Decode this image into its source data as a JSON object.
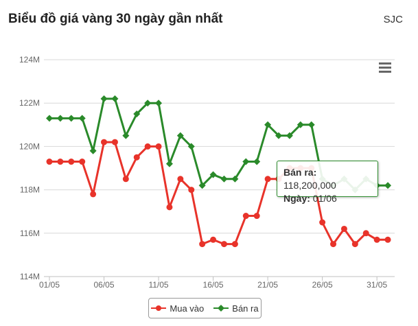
{
  "header": {
    "title": "Biểu đồ giá vàng 30 ngày gần nhất",
    "source": "SJC"
  },
  "colors": {
    "buy": "#e8332a",
    "sell": "#2a8a2a",
    "grid": "#d8d8d8"
  },
  "icons": {
    "menu": "hamburger-menu-icon"
  },
  "legend": {
    "buy_label": "Mua vào",
    "sell_label": "Bán ra"
  },
  "tooltip": {
    "label1": "Bán ra:",
    "value1": "118,200,000",
    "label2": "Ngày:",
    "value2": "01/06"
  },
  "chart_data": {
    "type": "line",
    "x": [
      "01/05",
      "02/05",
      "03/05",
      "04/05",
      "05/05",
      "06/05",
      "07/05",
      "08/05",
      "09/05",
      "10/05",
      "11/05",
      "12/05",
      "13/05",
      "14/05",
      "15/05",
      "16/05",
      "17/05",
      "18/05",
      "19/05",
      "20/05",
      "21/05",
      "22/05",
      "23/05",
      "24/05",
      "25/05",
      "26/05",
      "27/05",
      "28/05",
      "29/05",
      "30/05",
      "31/05",
      "01/06"
    ],
    "x_tick_labels": [
      "01/05",
      "06/05",
      "11/05",
      "16/05",
      "21/05",
      "26/05",
      "31/05"
    ],
    "y_tick_labels": [
      "114M",
      "116M",
      "118M",
      "120M",
      "122M",
      "124M"
    ],
    "ylim": [
      114,
      124
    ],
    "y_unit": "M",
    "grid": true,
    "legend_position": "bottom-center",
    "series": [
      {
        "name": "Mua vào",
        "color": "#e8332a",
        "marker": "circle",
        "values": [
          119.3,
          119.3,
          119.3,
          119.3,
          117.8,
          120.2,
          120.2,
          118.5,
          119.5,
          120.0,
          120.0,
          117.2,
          118.5,
          118.0,
          115.5,
          115.7,
          115.5,
          115.5,
          116.8,
          116.8,
          118.5,
          118.5,
          119.0,
          119.0,
          119.0,
          116.5,
          115.5,
          116.2,
          115.5,
          116.0,
          115.7,
          115.7
        ]
      },
      {
        "name": "Bán ra",
        "color": "#2a8a2a",
        "marker": "diamond",
        "values": [
          121.3,
          121.3,
          121.3,
          121.3,
          119.8,
          122.2,
          122.2,
          120.5,
          121.5,
          122.0,
          122.0,
          119.2,
          120.5,
          120.0,
          118.2,
          118.7,
          118.5,
          118.5,
          119.3,
          119.3,
          121.0,
          120.5,
          120.5,
          121.0,
          121.0,
          118.5,
          118.2,
          118.5,
          118.0,
          118.5,
          118.2,
          118.2
        ]
      }
    ]
  }
}
